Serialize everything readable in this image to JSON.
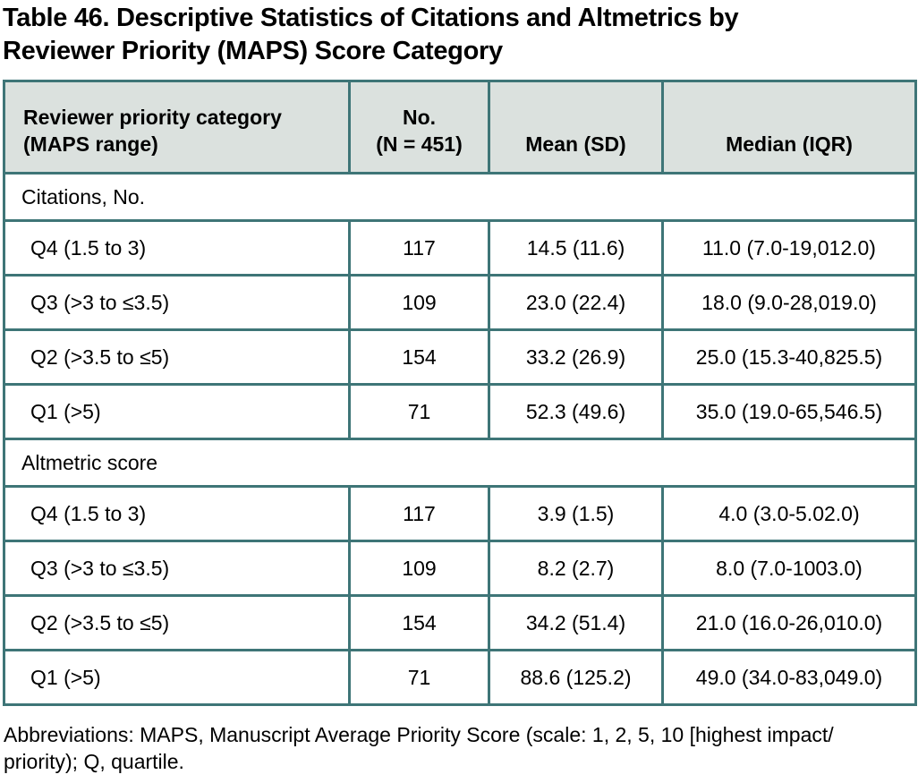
{
  "title": "Table 46. Descriptive Statistics of Citations and Altmetrics by\nReviewer Priority (MAPS) Score Category",
  "colors": {
    "border": "#3e7577",
    "header_bg": "#dbe1de",
    "text": "#000000"
  },
  "table": {
    "columns": [
      "Reviewer priority category\n(MAPS range)",
      "No.\n(N = 451)",
      "Mean (SD)",
      "Median (IQR)"
    ],
    "sections": [
      {
        "label": "Citations, No.",
        "rows": [
          {
            "category": "Q4 (1.5 to 3)",
            "n": "117",
            "mean_sd": "14.5 (11.6)",
            "median_iqr": "11.0 (7.0-19,012.0)"
          },
          {
            "category": "Q3 (>3 to ≤3.5)",
            "n": "109",
            "mean_sd": "23.0 (22.4)",
            "median_iqr": "18.0 (9.0-28,019.0)"
          },
          {
            "category": "Q2 (>3.5 to ≤5)",
            "n": "154",
            "mean_sd": "33.2 (26.9)",
            "median_iqr": "25.0 (15.3-40,825.5)"
          },
          {
            "category": "Q1 (>5)",
            "n": "71",
            "mean_sd": "52.3 (49.6)",
            "median_iqr": "35.0 (19.0-65,546.5)"
          }
        ]
      },
      {
        "label": "Altmetric score",
        "rows": [
          {
            "category": "Q4 (1.5 to 3)",
            "n": "117",
            "mean_sd": "3.9 (1.5)",
            "median_iqr": "4.0 (3.0-5.02.0)"
          },
          {
            "category": "Q3 (>3 to ≤3.5)",
            "n": "109",
            "mean_sd": "8.2 (2.7)",
            "median_iqr": "8.0 (7.0-1003.0)"
          },
          {
            "category": "Q2 (>3.5 to ≤5)",
            "n": "154",
            "mean_sd": "34.2 (51.4)",
            "median_iqr": "21.0 (16.0-26,010.0)"
          },
          {
            "category": "Q1 (>5)",
            "n": "71",
            "mean_sd": "88.6 (125.2)",
            "median_iqr": "49.0 (34.0-83,049.0)"
          }
        ]
      }
    ]
  },
  "footnote": "Abbreviations: MAPS, Manuscript Average Priority Score (scale: 1, 2, 5, 10 [highest impact/\npriority); Q, quartile."
}
